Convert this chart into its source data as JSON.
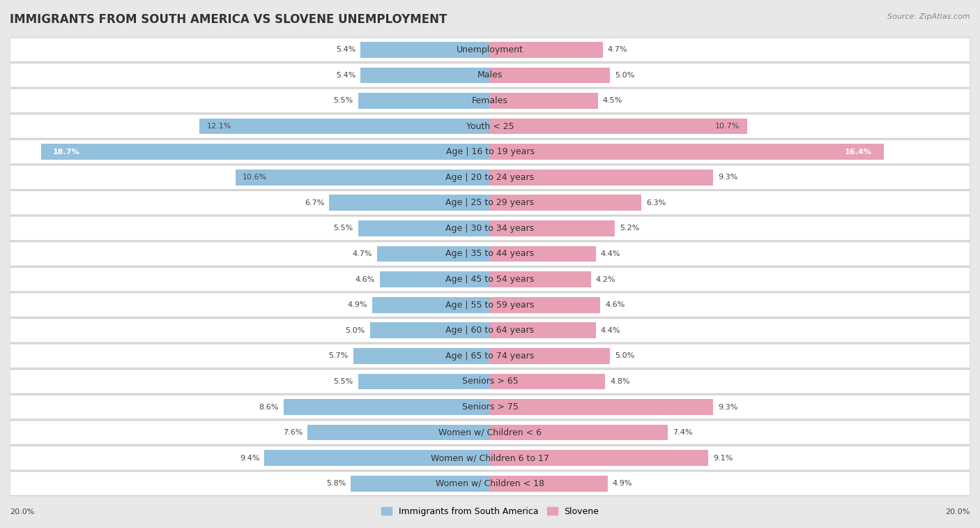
{
  "title": "IMMIGRANTS FROM SOUTH AMERICA VS SLOVENE UNEMPLOYMENT",
  "source": "Source: ZipAtlas.com",
  "categories": [
    "Unemployment",
    "Males",
    "Females",
    "Youth < 25",
    "Age | 16 to 19 years",
    "Age | 20 to 24 years",
    "Age | 25 to 29 years",
    "Age | 30 to 34 years",
    "Age | 35 to 44 years",
    "Age | 45 to 54 years",
    "Age | 55 to 59 years",
    "Age | 60 to 64 years",
    "Age | 65 to 74 years",
    "Seniors > 65",
    "Seniors > 75",
    "Women w/ Children < 6",
    "Women w/ Children 6 to 17",
    "Women w/ Children < 18"
  ],
  "left_values": [
    5.4,
    5.4,
    5.5,
    12.1,
    18.7,
    10.6,
    6.7,
    5.5,
    4.7,
    4.6,
    4.9,
    5.0,
    5.7,
    5.5,
    8.6,
    7.6,
    9.4,
    5.8
  ],
  "right_values": [
    4.7,
    5.0,
    4.5,
    10.7,
    16.4,
    9.3,
    6.3,
    5.2,
    4.4,
    4.2,
    4.6,
    4.4,
    5.0,
    4.8,
    9.3,
    7.4,
    9.1,
    4.9
  ],
  "left_color": "#93c0dd",
  "right_color": "#e8a0b4",
  "left_label": "Immigrants from South America",
  "right_label": "Slovene",
  "axis_max": 20.0,
  "background_color": "#e8e8e8",
  "row_fill_color": "#ffffff",
  "row_border_color": "#cccccc",
  "title_fontsize": 12,
  "label_fontsize": 9,
  "value_fontsize": 8,
  "source_fontsize": 8
}
